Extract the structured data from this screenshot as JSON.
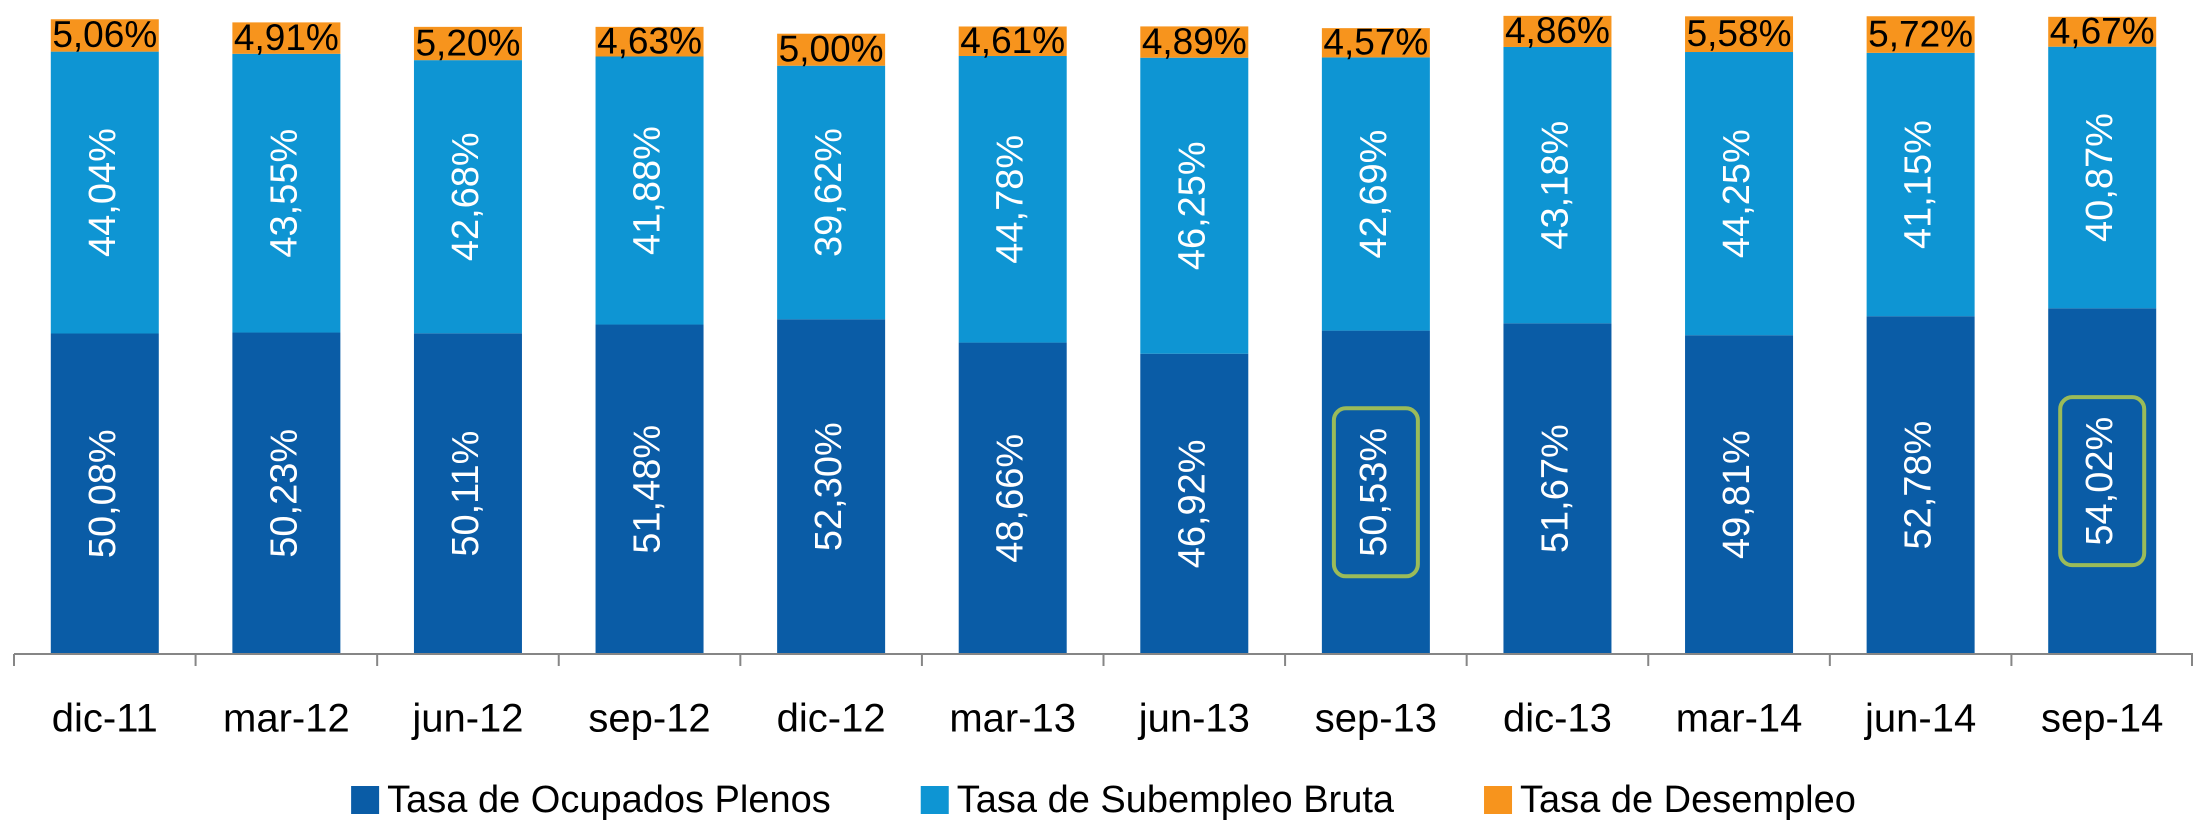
{
  "chart_data": {
    "type": "stacked_bar",
    "categories": [
      "dic-11",
      "mar-12",
      "jun-12",
      "sep-12",
      "dic-12",
      "mar-13",
      "jun-13",
      "sep-13",
      "dic-13",
      "mar-14",
      "jun-14",
      "sep-14"
    ],
    "series": [
      {
        "name": "Tasa de Ocupados Plenos",
        "color": "#0a5ca6",
        "values": [
          50.08,
          50.23,
          50.11,
          51.48,
          52.3,
          48.66,
          46.92,
          50.53,
          51.67,
          49.81,
          52.78,
          54.02
        ],
        "value_labels": [
          "50,08%",
          "50,23%",
          "50,11%",
          "51,48%",
          "52,30%",
          "48,66%",
          "46,92%",
          "50,53%",
          "51,67%",
          "49,81%",
          "52,78%",
          "54,02%"
        ]
      },
      {
        "name": "Tasa de Subempleo Bruta",
        "color": "#0e95d3",
        "values": [
          44.04,
          43.55,
          42.68,
          41.88,
          39.62,
          44.78,
          46.25,
          42.69,
          43.18,
          44.25,
          41.15,
          40.87
        ],
        "value_labels": [
          "44,04%",
          "43,55%",
          "42,68%",
          "41,88%",
          "39,62%",
          "44,78%",
          "46,25%",
          "42,69%",
          "43,18%",
          "44,25%",
          "41,15%",
          "40,87%"
        ]
      },
      {
        "name": "Tasa de Desempleo",
        "color": "#f7941d",
        "values": [
          5.06,
          4.91,
          5.2,
          4.63,
          5.0,
          4.61,
          4.89,
          4.57,
          4.86,
          5.58,
          5.72,
          4.67
        ],
        "value_labels": [
          "5,06%",
          "4,91%",
          "5,20%",
          "4,63%",
          "5,00%",
          "4,61%",
          "4,89%",
          "4,57%",
          "4,86%",
          "5,58%",
          "5,72%",
          "4,67%"
        ]
      }
    ],
    "ylim": [
      0,
      100
    ],
    "highlighted": [
      "sep-13",
      "sep-14"
    ],
    "highlight_color": "#9bbb59",
    "legend": "bottom"
  }
}
